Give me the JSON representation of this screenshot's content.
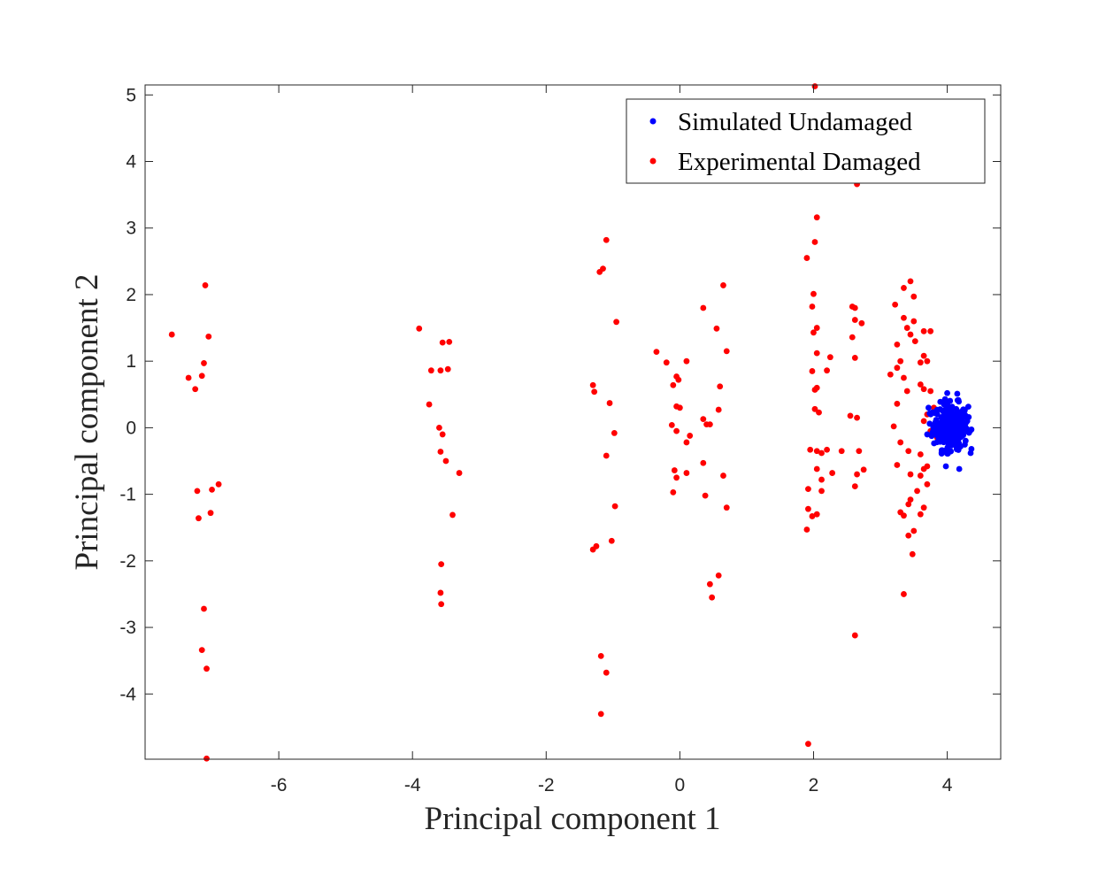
{
  "chart_data": {
    "type": "scatter",
    "title": "",
    "xlabel": "Principal component 1",
    "ylabel": "Principal component 2",
    "xlim": [
      -8.0,
      4.8
    ],
    "ylim": [
      -4.98,
      5.15
    ],
    "xticks": [
      -6,
      -4,
      -2,
      0,
      2,
      4
    ],
    "yticks": [
      -4,
      -3,
      -2,
      -1,
      0,
      1,
      2,
      3,
      4,
      5
    ],
    "grid": false,
    "legend_position": "top-right",
    "series": [
      {
        "name": "Simulated Undamaged",
        "color": "#0000ff",
        "cluster": {
          "center": [
            4.05,
            0.02
          ],
          "sd": [
            0.13,
            0.17
          ],
          "count": 300
        },
        "points": [
          [
            4.0,
            0.52
          ],
          [
            4.15,
            0.51
          ],
          [
            4.18,
            -0.62
          ],
          [
            4.35,
            -0.38
          ],
          [
            3.98,
            -0.58
          ],
          [
            3.72,
            0.3
          ],
          [
            3.7,
            -0.1
          ],
          [
            4.3,
            0.1
          ]
        ]
      },
      {
        "name": "Experimental Damaged",
        "color": "#ff0000",
        "points": [
          [
            -7.6,
            1.4
          ],
          [
            -7.1,
            2.14
          ],
          [
            -7.05,
            1.37
          ],
          [
            -7.12,
            0.97
          ],
          [
            -7.35,
            0.75
          ],
          [
            -7.25,
            0.58
          ],
          [
            -7.15,
            0.78
          ],
          [
            -6.9,
            -0.85
          ],
          [
            -7.0,
            -0.93
          ],
          [
            -7.22,
            -0.95
          ],
          [
            -7.2,
            -1.36
          ],
          [
            -7.02,
            -1.28
          ],
          [
            -7.12,
            -2.72
          ],
          [
            -7.15,
            -3.34
          ],
          [
            -7.08,
            -3.62
          ],
          [
            -7.08,
            -4.97
          ],
          [
            -3.9,
            1.49
          ],
          [
            -3.55,
            1.28
          ],
          [
            -3.45,
            1.29
          ],
          [
            -3.72,
            0.86
          ],
          [
            -3.58,
            0.86
          ],
          [
            -3.47,
            0.88
          ],
          [
            -3.75,
            0.35
          ],
          [
            -3.6,
            0.0
          ],
          [
            -3.55,
            -0.1
          ],
          [
            -3.58,
            -0.36
          ],
          [
            -3.5,
            -0.5
          ],
          [
            -3.3,
            -0.68
          ],
          [
            -3.4,
            -1.31
          ],
          [
            -3.57,
            -2.05
          ],
          [
            -3.58,
            -2.48
          ],
          [
            -3.57,
            -2.65
          ],
          [
            -1.1,
            2.82
          ],
          [
            -1.15,
            2.39
          ],
          [
            -1.2,
            2.34
          ],
          [
            -0.95,
            1.59
          ],
          [
            -1.3,
            0.64
          ],
          [
            -1.28,
            0.54
          ],
          [
            -1.05,
            0.37
          ],
          [
            -0.98,
            -0.08
          ],
          [
            -1.1,
            -0.42
          ],
          [
            -0.97,
            -1.18
          ],
          [
            -1.02,
            -1.7
          ],
          [
            -1.3,
            -1.83
          ],
          [
            -1.25,
            -1.78
          ],
          [
            -1.18,
            -3.43
          ],
          [
            -1.1,
            -3.68
          ],
          [
            -1.18,
            -4.3
          ],
          [
            -0.35,
            1.14
          ],
          [
            -0.2,
            0.98
          ],
          [
            0.1,
            1.0
          ],
          [
            -0.05,
            0.77
          ],
          [
            -0.02,
            0.72
          ],
          [
            -0.1,
            0.64
          ],
          [
            -0.05,
            0.32
          ],
          [
            0.0,
            0.3
          ],
          [
            -0.12,
            0.04
          ],
          [
            -0.05,
            -0.05
          ],
          [
            0.15,
            -0.12
          ],
          [
            0.1,
            -0.22
          ],
          [
            -0.08,
            -0.64
          ],
          [
            -0.05,
            -0.75
          ],
          [
            0.1,
            -0.68
          ],
          [
            -0.1,
            -0.97
          ],
          [
            0.55,
            1.49
          ],
          [
            0.65,
            2.14
          ],
          [
            0.35,
            1.8
          ],
          [
            0.7,
            1.15
          ],
          [
            0.6,
            0.62
          ],
          [
            0.58,
            0.27
          ],
          [
            0.35,
            0.13
          ],
          [
            0.4,
            0.05
          ],
          [
            0.45,
            0.05
          ],
          [
            0.35,
            -0.53
          ],
          [
            0.65,
            -0.72
          ],
          [
            0.38,
            -1.02
          ],
          [
            0.7,
            -1.2
          ],
          [
            0.58,
            -2.22
          ],
          [
            0.45,
            -2.35
          ],
          [
            0.48,
            -2.55
          ],
          [
            2.02,
            5.13
          ],
          [
            2.05,
            3.16
          ],
          [
            2.02,
            2.79
          ],
          [
            1.9,
            2.55
          ],
          [
            2.0,
            2.01
          ],
          [
            1.98,
            1.82
          ],
          [
            2.05,
            1.5
          ],
          [
            2.0,
            1.43
          ],
          [
            2.05,
            1.12
          ],
          [
            2.25,
            1.06
          ],
          [
            2.2,
            0.86
          ],
          [
            1.98,
            0.85
          ],
          [
            2.05,
            0.6
          ],
          [
            2.02,
            0.57
          ],
          [
            2.02,
            0.28
          ],
          [
            2.08,
            0.23
          ],
          [
            1.95,
            -0.33
          ],
          [
            2.05,
            -0.35
          ],
          [
            2.12,
            -0.38
          ],
          [
            2.2,
            -0.33
          ],
          [
            2.42,
            -0.35
          ],
          [
            2.05,
            -0.62
          ],
          [
            2.12,
            -0.78
          ],
          [
            2.28,
            -0.68
          ],
          [
            1.92,
            -0.92
          ],
          [
            2.12,
            -0.95
          ],
          [
            1.92,
            -1.22
          ],
          [
            2.05,
            -1.3
          ],
          [
            1.98,
            -1.33
          ],
          [
            1.9,
            -1.53
          ],
          [
            1.92,
            -4.75
          ],
          [
            2.58,
            1.82
          ],
          [
            2.62,
            1.8
          ],
          [
            2.62,
            1.62
          ],
          [
            2.72,
            1.57
          ],
          [
            2.58,
            1.36
          ],
          [
            2.62,
            1.05
          ],
          [
            2.55,
            0.18
          ],
          [
            2.65,
            0.15
          ],
          [
            2.68,
            -0.35
          ],
          [
            2.65,
            -0.7
          ],
          [
            2.62,
            -0.88
          ],
          [
            2.75,
            -0.63
          ],
          [
            2.62,
            -3.12
          ],
          [
            2.65,
            3.66
          ],
          [
            3.45,
            2.2
          ],
          [
            3.35,
            2.1
          ],
          [
            3.5,
            1.97
          ],
          [
            3.22,
            1.85
          ],
          [
            3.35,
            1.65
          ],
          [
            3.5,
            1.6
          ],
          [
            3.65,
            1.45
          ],
          [
            3.75,
            1.45
          ],
          [
            3.4,
            1.5
          ],
          [
            3.45,
            1.4
          ],
          [
            3.52,
            1.3
          ],
          [
            3.25,
            1.25
          ],
          [
            3.65,
            1.08
          ],
          [
            3.7,
            1.0
          ],
          [
            3.3,
            1.0
          ],
          [
            3.25,
            0.9
          ],
          [
            3.15,
            0.8
          ],
          [
            3.35,
            0.75
          ],
          [
            3.6,
            0.65
          ],
          [
            3.65,
            0.58
          ],
          [
            3.75,
            0.55
          ],
          [
            3.4,
            0.55
          ],
          [
            3.25,
            0.36
          ],
          [
            3.65,
            0.1
          ],
          [
            3.7,
            0.2
          ],
          [
            3.75,
            -0.05
          ],
          [
            3.2,
            0.02
          ],
          [
            3.3,
            -0.22
          ],
          [
            3.42,
            -0.35
          ],
          [
            3.6,
            -0.4
          ],
          [
            3.25,
            -0.56
          ],
          [
            3.65,
            -0.62
          ],
          [
            3.7,
            -0.58
          ],
          [
            3.45,
            -0.7
          ],
          [
            3.6,
            -0.72
          ],
          [
            3.7,
            -0.85
          ],
          [
            3.45,
            -1.08
          ],
          [
            3.42,
            -1.15
          ],
          [
            3.65,
            -1.2
          ],
          [
            3.6,
            -1.3
          ],
          [
            3.3,
            -1.27
          ],
          [
            3.35,
            -1.32
          ],
          [
            3.5,
            -1.55
          ],
          [
            3.42,
            -1.62
          ],
          [
            3.48,
            -1.9
          ],
          [
            3.35,
            -2.5
          ],
          [
            3.55,
            -0.95
          ],
          [
            3.6,
            0.98
          ],
          [
            3.8,
            0.3
          ],
          [
            3.85,
            -0.15
          ]
        ]
      }
    ]
  }
}
